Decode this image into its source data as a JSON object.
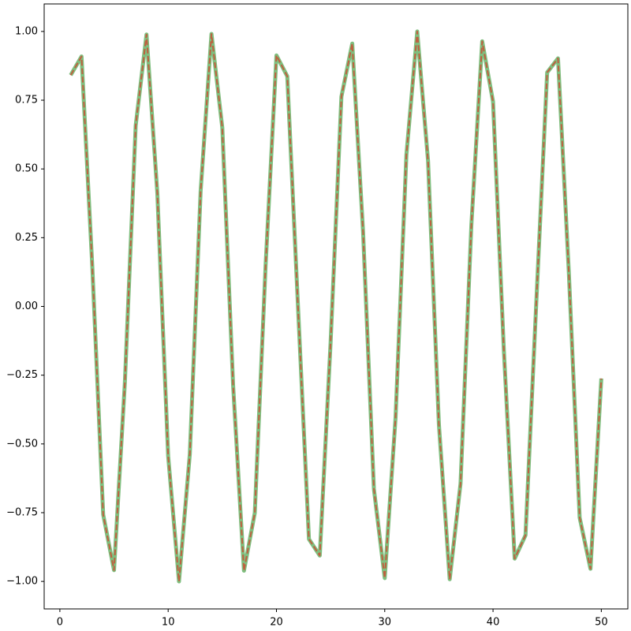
{
  "chart_data": {
    "type": "line",
    "x": [
      1,
      2,
      3,
      4,
      5,
      6,
      7,
      8,
      9,
      10,
      11,
      12,
      13,
      14,
      15,
      16,
      17,
      18,
      19,
      20,
      21,
      22,
      23,
      24,
      25,
      26,
      27,
      28,
      29,
      30,
      31,
      32,
      33,
      34,
      35,
      36,
      37,
      38,
      39,
      40,
      41,
      42,
      43,
      44,
      45,
      46,
      47,
      48,
      49,
      50
    ],
    "series": [
      {
        "color": "#008000",
        "opacity": 0.5,
        "line_width": 5,
        "dashed": false,
        "values": [
          0.841,
          0.909,
          0.141,
          -0.757,
          -0.959,
          -0.279,
          0.657,
          0.989,
          0.412,
          -0.544,
          -1.0,
          -0.537,
          0.42,
          0.991,
          0.65,
          -0.288,
          -0.961,
          -0.751,
          0.15,
          0.913,
          0.837,
          -0.009,
          -0.846,
          -0.906,
          -0.132,
          0.763,
          0.956,
          0.271,
          -0.664,
          -0.988,
          -0.404,
          0.551,
          1.0,
          0.529,
          -0.428,
          -0.992,
          -0.644,
          0.296,
          0.964,
          0.745,
          -0.159,
          -0.917,
          -0.832,
          0.018,
          0.851,
          0.902,
          0.124,
          -0.768,
          -0.954,
          -0.262
        ]
      },
      {
        "color": "#ff0000",
        "opacity": 0.5,
        "line_width": 2,
        "dashed": true,
        "values": [
          0.841,
          0.909,
          0.141,
          -0.757,
          -0.959,
          -0.279,
          0.657,
          0.989,
          0.412,
          -0.544,
          -1.0,
          -0.537,
          0.42,
          0.991,
          0.65,
          -0.288,
          -0.961,
          -0.751,
          0.15,
          0.913,
          0.837,
          -0.009,
          -0.846,
          -0.906,
          -0.132,
          0.763,
          0.956,
          0.271,
          -0.664,
          -0.988,
          -0.404,
          0.551,
          1.0,
          0.529,
          -0.428,
          -0.992,
          -0.644,
          0.296,
          0.964,
          0.745,
          -0.159,
          -0.917,
          -0.832,
          0.018,
          0.851,
          0.902,
          0.124,
          -0.768,
          -0.954,
          -0.262
        ]
      }
    ],
    "xlim": [
      -1.45,
      52.45
    ],
    "ylim": [
      -1.1,
      1.1
    ],
    "xticks": [
      0,
      10,
      20,
      30,
      40,
      50
    ],
    "yticks": [
      {
        "value": -1,
        "label": "−1.00"
      },
      {
        "value": -0.75,
        "label": "−0.75"
      },
      {
        "value": -0.5,
        "label": "−0.50"
      },
      {
        "value": -0.25,
        "label": "−0.25"
      },
      {
        "value": 0,
        "label": "0.00"
      },
      {
        "value": 0.25,
        "label": "0.25"
      },
      {
        "value": 0.5,
        "label": "0.50"
      },
      {
        "value": 0.75,
        "label": "0.75"
      },
      {
        "value": 1,
        "label": "1.00"
      }
    ],
    "grid": false
  }
}
